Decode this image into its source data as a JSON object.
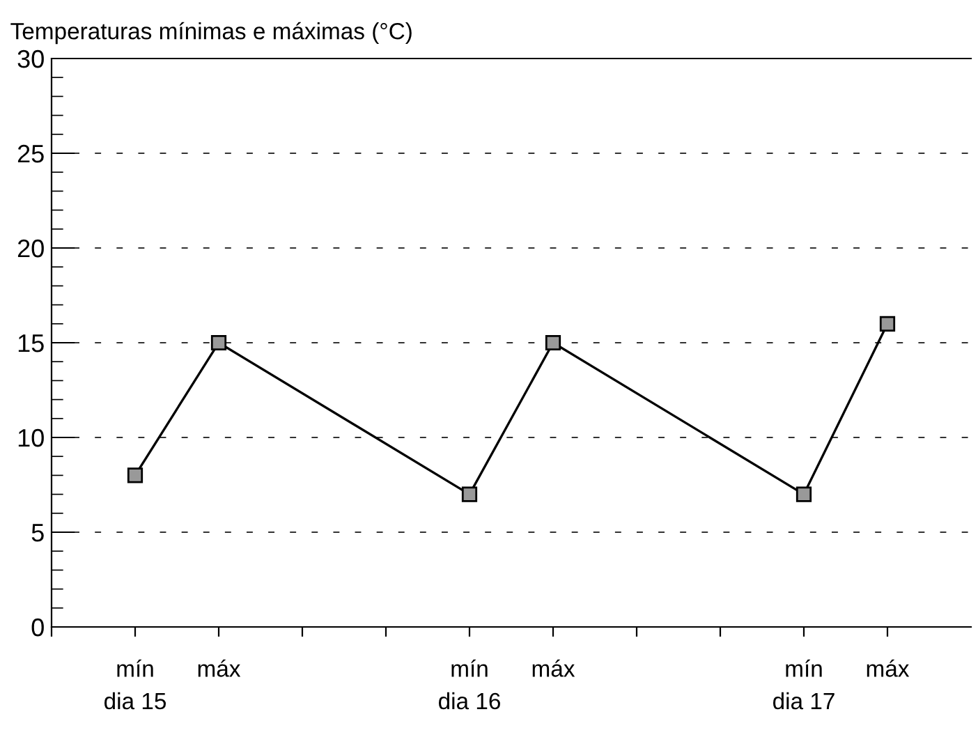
{
  "chart_data": {
    "type": "line",
    "title": "Temperaturas mínimas e máximas (°C)",
    "categories": [
      null,
      "mín",
      "máx",
      null,
      null,
      "mín",
      "máx",
      null,
      null,
      "mín",
      "máx",
      null
    ],
    "values": [
      null,
      8,
      15,
      null,
      null,
      7,
      15,
      null,
      null,
      7,
      16,
      null
    ],
    "color": "#000000",
    "marker": "square",
    "line_style": "solid",
    "ylim": [
      0,
      30
    ],
    "yticks": [
      0,
      5,
      10,
      15,
      20,
      25,
      30
    ],
    "grid": "y",
    "annotations": [
      "dia 15",
      "dia 16",
      "dia 17"
    ]
  }
}
